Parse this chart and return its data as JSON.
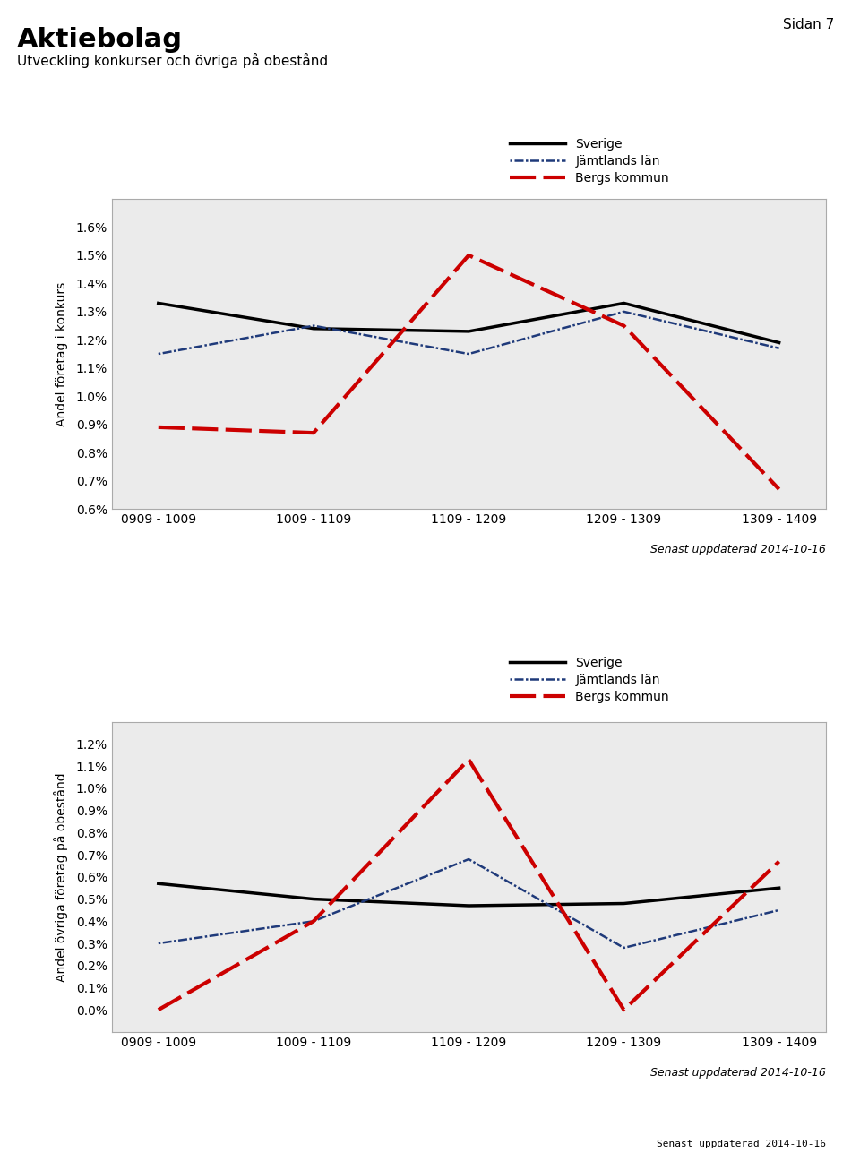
{
  "page_label": "Sidan 7",
  "main_title": "Aktiebolag",
  "subtitle": "Utveckling konkurser och övriga på obestånd",
  "x_labels": [
    "0909 - 1009",
    "1009 - 1109",
    "1109 - 1209",
    "1209 - 1309",
    "1309 - 1409"
  ],
  "x_positions": [
    0,
    1,
    2,
    3,
    4
  ],
  "updated_text": "Senast uppdaterad 2014-10-16",
  "chart1": {
    "ylabel": "Andel företag i konkurs",
    "ylim": [
      0.006,
      0.017
    ],
    "yticks": [
      0.006,
      0.007,
      0.008,
      0.009,
      0.01,
      0.011,
      0.012,
      0.013,
      0.014,
      0.015,
      0.016
    ],
    "sverige": [
      0.0133,
      0.0124,
      0.0123,
      0.0133,
      0.0119
    ],
    "jamtland": [
      0.0115,
      0.0125,
      0.0115,
      0.013,
      0.0117
    ],
    "bergs": [
      0.0089,
      0.0087,
      0.015,
      0.0125,
      0.0067
    ]
  },
  "chart2": {
    "ylabel": "Andel övriga företag på obestånd",
    "ylim": [
      -0.001,
      0.013
    ],
    "yticks": [
      0.0,
      0.001,
      0.002,
      0.003,
      0.004,
      0.005,
      0.006,
      0.007,
      0.008,
      0.009,
      0.01,
      0.011,
      0.012
    ],
    "sverige": [
      0.0057,
      0.005,
      0.0047,
      0.0048,
      0.0055
    ],
    "jamtland": [
      0.003,
      0.004,
      0.0068,
      0.0028,
      0.0045
    ],
    "bergs": [
      0.0,
      0.004,
      0.0113,
      0.0,
      0.0067
    ]
  },
  "legend_labels": [
    "Sverige",
    "Jämtlands län",
    "Bergs kommun"
  ],
  "color_sverige": "#000000",
  "color_jamtland": "#1F3A7A",
  "color_bergs": "#CC0000",
  "plot_background": "#EBEBEB"
}
